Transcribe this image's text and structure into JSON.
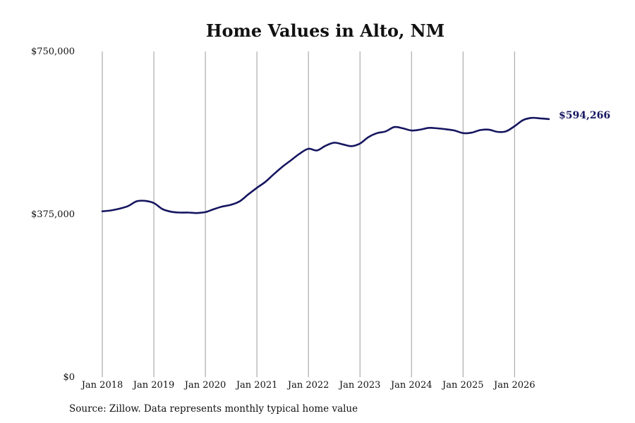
{
  "chart_data": {
    "type": "line",
    "title": "Home Values in Alto, NM",
    "xlabel": "",
    "ylabel": "",
    "ylim": [
      0,
      750000
    ],
    "yticks": [
      0,
      375000,
      750000
    ],
    "ytick_labels": [
      "$0",
      "$375,000",
      "$750,000"
    ],
    "xlim": [
      "2018-01",
      "2026-09"
    ],
    "xtick_labels": [
      "Jan 2018",
      "Jan 2019",
      "Jan 2020",
      "Jan 2021",
      "Jan 2022",
      "Jan 2023",
      "Jan 2024",
      "Jan 2025",
      "Jan 2026"
    ],
    "grid": "vertical",
    "legend": "none",
    "series": [
      {
        "color": "#151560",
        "end_label": "$594,266",
        "points": [
          [
            "2018-01",
            382000
          ],
          [
            "2018-03",
            384000
          ],
          [
            "2018-05",
            388000
          ],
          [
            "2018-07",
            394000
          ],
          [
            "2018-09",
            405000
          ],
          [
            "2018-11",
            406000
          ],
          [
            "2019-01",
            401000
          ],
          [
            "2019-03",
            387000
          ],
          [
            "2019-05",
            381000
          ],
          [
            "2019-07",
            379000
          ],
          [
            "2019-09",
            379000
          ],
          [
            "2019-11",
            378000
          ],
          [
            "2020-01",
            380000
          ],
          [
            "2020-03",
            387000
          ],
          [
            "2020-05",
            393000
          ],
          [
            "2020-07",
            397000
          ],
          [
            "2020-09",
            405000
          ],
          [
            "2020-11",
            421000
          ],
          [
            "2021-01",
            436000
          ],
          [
            "2021-03",
            450000
          ],
          [
            "2021-05",
            468000
          ],
          [
            "2021-07",
            485000
          ],
          [
            "2021-09",
            500000
          ],
          [
            "2021-11",
            515000
          ],
          [
            "2022-01",
            526000
          ],
          [
            "2022-03",
            522000
          ],
          [
            "2022-05",
            533000
          ],
          [
            "2022-07",
            540000
          ],
          [
            "2022-09",
            536000
          ],
          [
            "2022-11",
            532000
          ],
          [
            "2023-01",
            538000
          ],
          [
            "2023-03",
            553000
          ],
          [
            "2023-05",
            562000
          ],
          [
            "2023-07",
            566000
          ],
          [
            "2023-09",
            576000
          ],
          [
            "2023-11",
            573000
          ],
          [
            "2024-01",
            568000
          ],
          [
            "2024-03",
            570000
          ],
          [
            "2024-05",
            574000
          ],
          [
            "2024-07",
            573000
          ],
          [
            "2024-09",
            571000
          ],
          [
            "2024-11",
            568000
          ],
          [
            "2025-01",
            562000
          ],
          [
            "2025-03",
            563000
          ],
          [
            "2025-05",
            569000
          ],
          [
            "2025-07",
            570000
          ],
          [
            "2025-09",
            565000
          ],
          [
            "2025-11",
            566000
          ],
          [
            "2026-01",
            578000
          ],
          [
            "2026-03",
            592000
          ],
          [
            "2026-05",
            597000
          ],
          [
            "2026-07",
            596000
          ],
          [
            "2026-09",
            594266
          ]
        ]
      }
    ]
  },
  "footer": {
    "source": "Source: Zillow. Data represents monthly typical home value"
  }
}
